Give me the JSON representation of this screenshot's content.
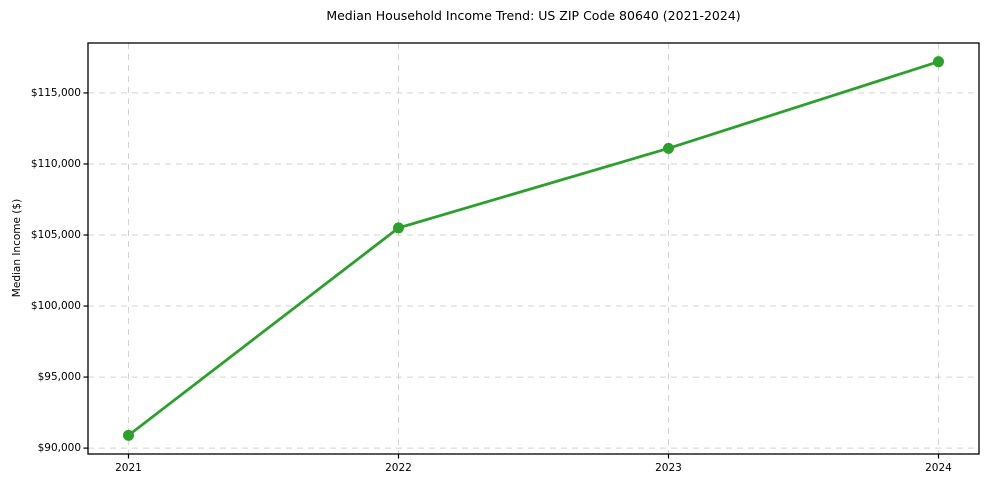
{
  "figure": {
    "title": "Median Household Income Trend: US ZIP Code 80640 (2021-2024)"
  },
  "chart_data": {
    "type": "line",
    "title": "Median Household Income Trend: US ZIP Code 80640 (2021-2024)",
    "xlabel": "",
    "ylabel": "Median Income ($)",
    "x": [
      2021,
      2022,
      2023,
      2024
    ],
    "x_tick_labels": [
      "2021",
      "2022",
      "2023",
      "2024"
    ],
    "series": [
      {
        "name": "",
        "values": [
          90900,
          105500,
          111100,
          117200
        ],
        "color": "#2ca02c",
        "marker": "circle",
        "line_width": 2.8,
        "marker_radius": 5.5
      }
    ],
    "xlim": [
      2020.85,
      2024.15
    ],
    "ylim": [
      89585,
      118515
    ],
    "yticks": [
      90000,
      95000,
      100000,
      105000,
      110000,
      115000
    ],
    "ytick_labels": [
      "$90,000",
      "$95,000",
      "$100,000",
      "$105,000",
      "$110,000",
      "$115,000"
    ],
    "grid": true,
    "grid_style": "dashed",
    "legend": "none",
    "colors": {
      "line": "#2ca02c",
      "grid": "#d3d3d3",
      "spine": "#000000",
      "background": "#ffffff",
      "text": "#000000"
    }
  }
}
